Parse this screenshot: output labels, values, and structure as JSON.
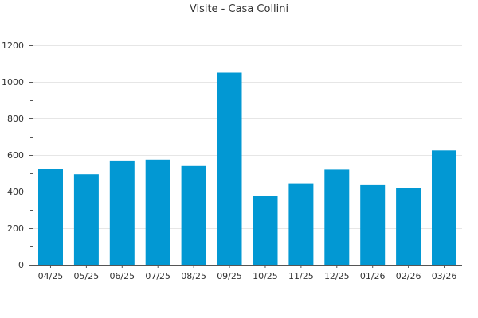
{
  "title": "Visite - Casa Collini",
  "colors": {
    "bar": "#0298d3",
    "grid": "#e6e6e6",
    "axis": "#555555",
    "text": "#333333"
  },
  "chart_data": {
    "type": "bar",
    "title": "Visite - Casa Collini",
    "xlabel": "",
    "ylabel": "",
    "categories": [
      "04/25",
      "05/25",
      "06/25",
      "07/25",
      "08/25",
      "09/25",
      "10/25",
      "11/25",
      "12/25",
      "01/26",
      "02/26",
      "03/26"
    ],
    "values": [
      525,
      495,
      570,
      575,
      540,
      1050,
      375,
      445,
      520,
      435,
      420,
      625
    ],
    "ylim": [
      0,
      1200
    ],
    "yticks": [
      0,
      200,
      400,
      600,
      800,
      1000,
      1200
    ],
    "grid": true,
    "legend": "none"
  }
}
